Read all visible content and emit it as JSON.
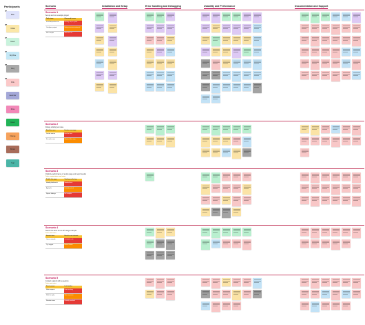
{
  "legend": {
    "title": "Participants",
    "items": [
      {
        "tag": "P1",
        "label": "Blue",
        "color": "#dfe3fb"
      },
      {
        "tag": "P2",
        "label": "Yellow",
        "color": "#fbe7a8"
      },
      {
        "tag": "P3",
        "label": "Green",
        "color": "#c9f3dd"
      },
      {
        "tag": "P4",
        "label": "Sky Blue",
        "color": "#c5e8f6"
      },
      {
        "tag": "P5",
        "label": "Grey",
        "color": "#a9a9a9"
      },
      {
        "tag": "P6",
        "label": "Pink",
        "color": "#fbc9c9"
      },
      {
        "tag": "",
        "label": "Lavender",
        "color": "#a4a8d8"
      },
      {
        "tag": "",
        "label": "Rose",
        "color": "#f288b8"
      },
      {
        "tag": "",
        "label": "Green",
        "color": "#22b357"
      },
      {
        "tag": "",
        "label": "Orange",
        "color": "#f6a25c"
      },
      {
        "tag": "",
        "label": "Brown",
        "color": "#a86c5a"
      },
      {
        "tag": "",
        "label": "Teal",
        "color": "#4bb5a7"
      }
    ]
  },
  "columns": [
    {
      "label": "Scenario",
      "x": 66
    },
    {
      "label": "Installation and Setup",
      "x": 148
    },
    {
      "label": "Error handling and Debugging",
      "x": 211
    },
    {
      "label": "Usability and Performance",
      "x": 296
    },
    {
      "label": "Documentation and Support",
      "x": 428
    }
  ],
  "scenarios": [
    {
      "title": "Scenario 1",
      "desc": "Set up and run a sample project",
      "sub": "",
      "rows": [
        [
          "Task steps",
          "Observed issues"
        ],
        [
          "Install dependencies",
          "Missing step in guide"
        ],
        [
          "Configure project",
          "Setup errors encountered"
        ],
        [
          "Run sample",
          "Slow first run"
        ]
      ]
    },
    {
      "title": "Scenario 2",
      "desc": "Debug a failing test case",
      "sub": "",
      "rows": [
        [
          "Find the error",
          "Unclear message"
        ],
        [
          "Locate source",
          "Hard to trace"
        ],
        [
          "Fix and re-run",
          "Worked after retry"
        ]
      ]
    },
    {
      "title": "Scenario 3",
      "desc": "Optimize performance of a slow page and report results",
      "sub": "Tasks, expectations and notes",
      "rows": [
        [
          "Profile the page",
          "Tooling confusing"
        ],
        [
          "Identify bottleneck",
          "Needed docs"
        ],
        [
          "Apply fix",
          "Partially solved"
        ],
        [
          "Report findings",
          "No template"
        ]
      ]
    },
    {
      "title": "Scenario 4",
      "desc": "Search the docs for an API usage example",
      "sub": "Tasks and notes",
      "rows": [
        [
          "Search docs",
          "Results not relevant"
        ],
        [
          "Open example",
          "Outdated code"
        ],
        [
          "Try snippet",
          "Errors thrown"
        ]
      ]
    },
    {
      "title": "Scenario 5",
      "desc": "Contact support with a question",
      "sub": "Tasks and notes",
      "rows": [
        [
          "Find contact",
          "Link hidden"
        ],
        [
          "Write request",
          "Form too long"
        ],
        [
          "Wait for reply",
          "Slow response"
        ],
        [
          "Resolve issue",
          "Partially resolved"
        ]
      ]
    }
  ]
}
